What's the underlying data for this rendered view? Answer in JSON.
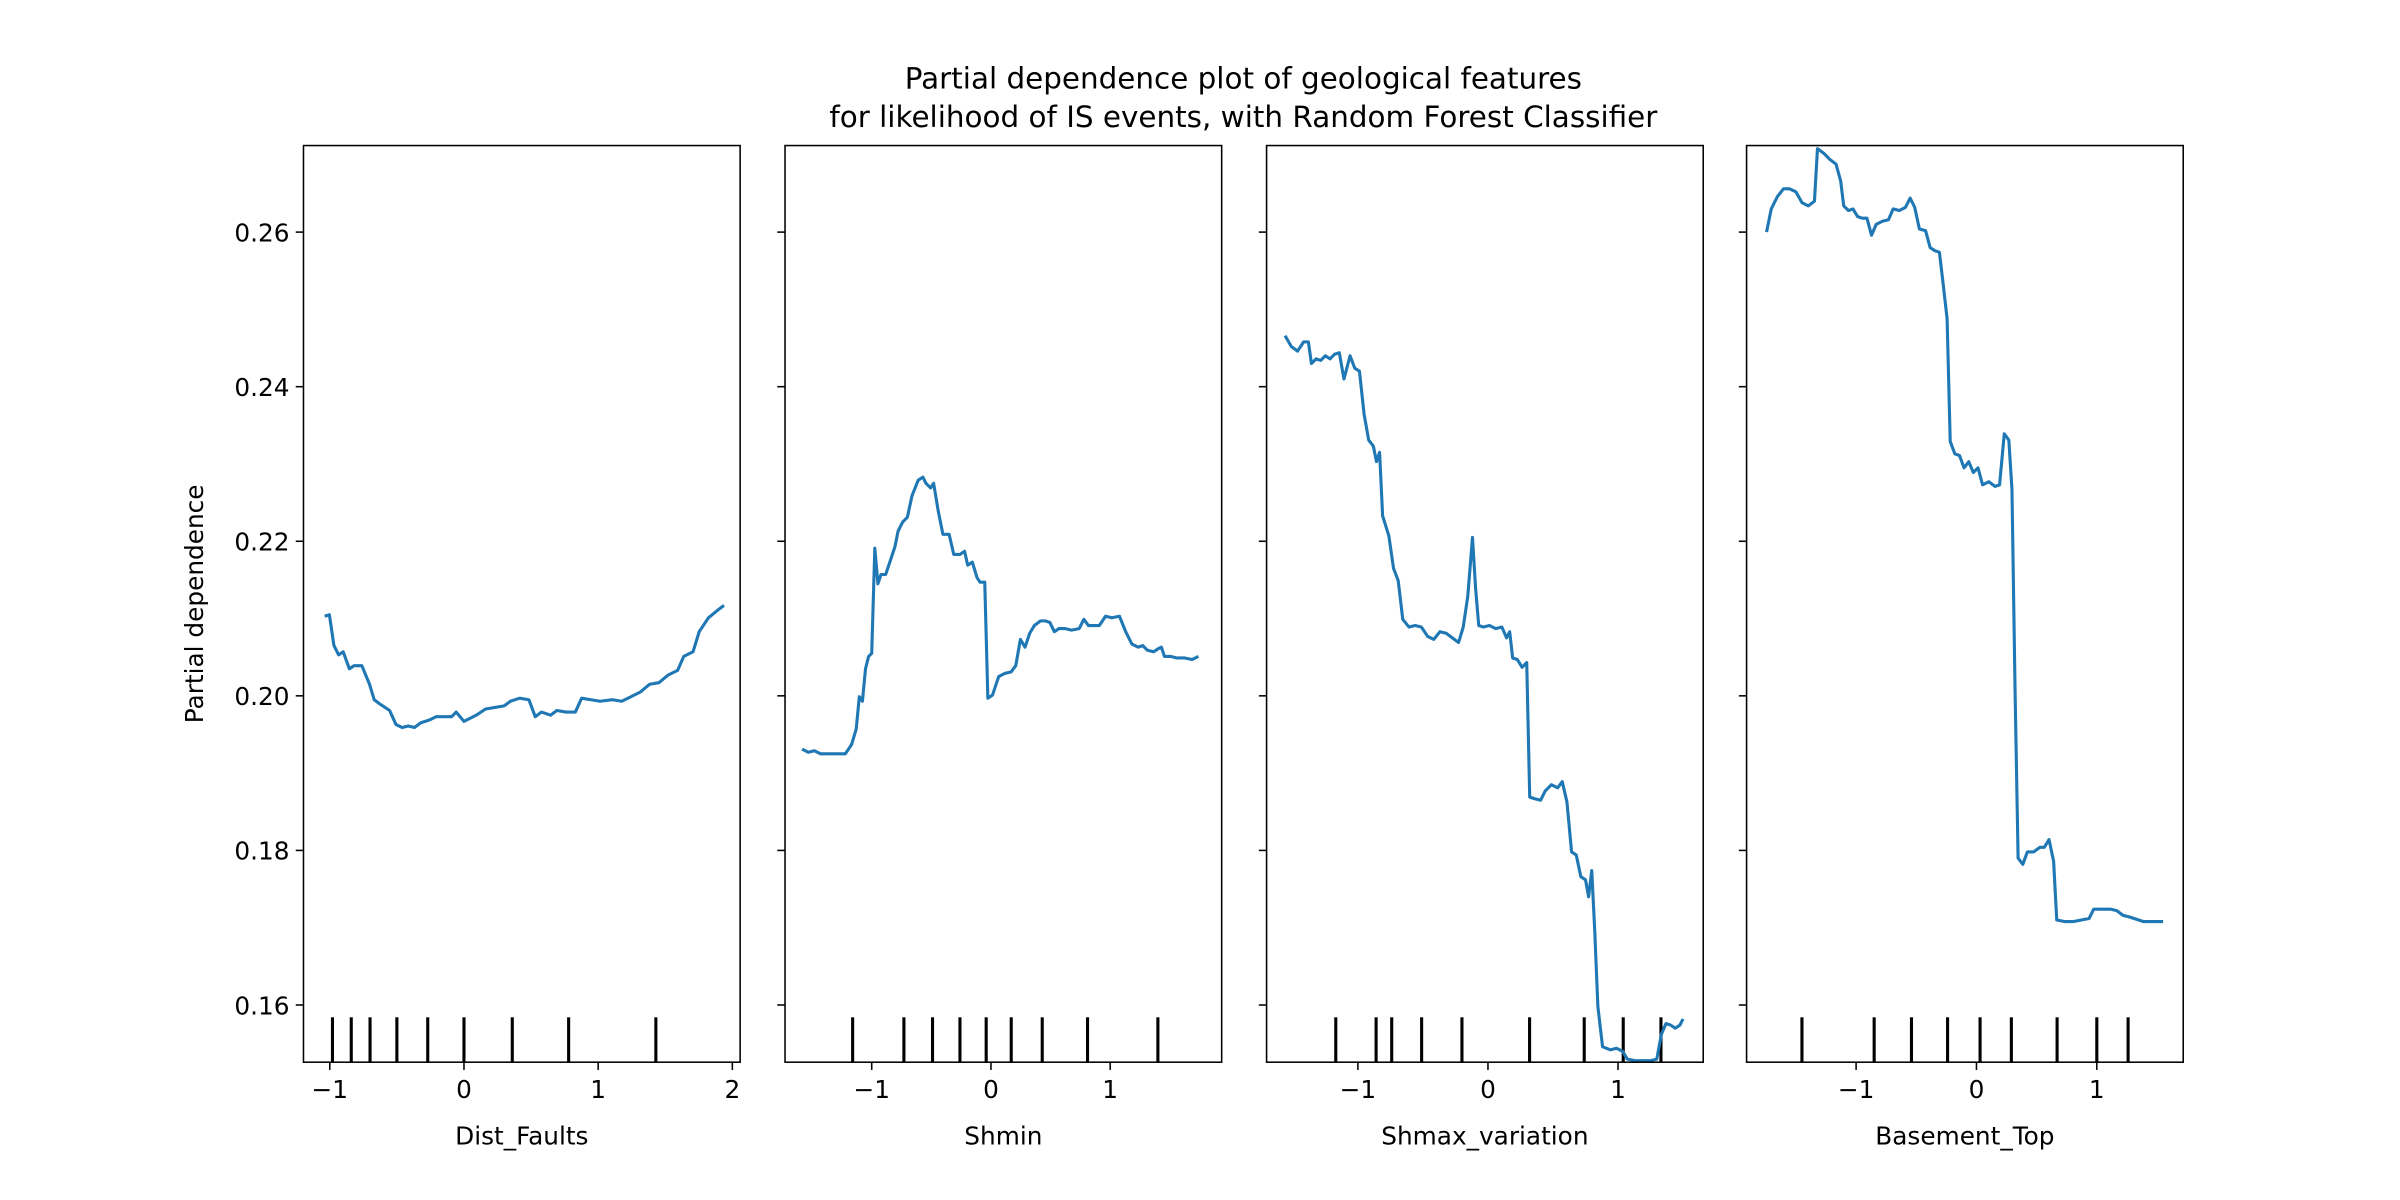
{
  "title": [
    "Partial dependence plot of geological features",
    "for likelihood of IS events, with Random Forest Classifier"
  ],
  "chart_data": [
    {
      "type": "line",
      "xlabel": "Dist_Faults",
      "ylabel": "Partial dependence",
      "color": "#1f77b4",
      "ylim": [
        0.1526,
        0.2712
      ],
      "yticks": [
        0.16,
        0.18,
        {
          "value": 0.2,
          "label": "0.20"
        },
        0.22,
        0.24,
        0.26
      ],
      "xlim": [
        -1.196,
        2.058
      ],
      "xticks": [
        {
          "value": -1,
          "label": "−1"
        },
        0,
        1,
        2
      ],
      "deciles": [
        -0.98,
        -0.84,
        -0.7,
        -0.5,
        -0.27,
        0,
        0.36,
        0.78,
        1.43
      ],
      "x": [
        -1.038,
        -1.003,
        -0.969,
        -0.934,
        -0.9,
        -0.854,
        -0.819,
        -0.761,
        -0.704,
        -0.669,
        -0.623,
        -0.554,
        -0.507,
        -0.461,
        -0.415,
        -0.369,
        -0.323,
        -0.254,
        -0.208,
        -0.15,
        -0.092,
        -0.058,
        0,
        0.046,
        0.092,
        0.161,
        0.231,
        0.3,
        0.346,
        0.415,
        0.484,
        0.531,
        0.577,
        0.646,
        0.692,
        0.761,
        0.83,
        0.877,
        0.946,
        1.015,
        1.107,
        1.176,
        1.246,
        1.315,
        1.384,
        1.453,
        1.522,
        1.592,
        1.638,
        1.707,
        1.753,
        1.822,
        1.892,
        1.938
      ],
      "values": [
        0.2103,
        0.2105,
        0.2065,
        0.2053,
        0.2057,
        0.2035,
        0.2039,
        0.2039,
        0.2015,
        0.1995,
        0.1989,
        0.1981,
        0.1963,
        0.1959,
        0.1961,
        0.1959,
        0.1965,
        0.1969,
        0.1973,
        0.1973,
        0.1973,
        0.1979,
        0.1967,
        0.1971,
        0.1975,
        0.1983,
        0.1985,
        0.1987,
        0.1993,
        0.1997,
        0.1995,
        0.1973,
        0.1979,
        0.1975,
        0.1981,
        0.1979,
        0.1979,
        0.1997,
        0.1995,
        0.1993,
        0.1995,
        0.1993,
        0.1999,
        0.2005,
        0.2015,
        0.2017,
        0.2027,
        0.2033,
        0.2051,
        0.2057,
        0.2083,
        0.2101,
        0.2111,
        0.2117
      ]
    },
    {
      "type": "line",
      "xlabel": "Shmin",
      "sharey": true,
      "color": "#1f77b4",
      "xlim": [
        -1.727,
        1.935
      ],
      "xticks": [
        {
          "value": -1,
          "label": "−1"
        },
        0,
        1
      ],
      "deciles": [
        -1.16,
        -0.73,
        -0.49,
        -0.26,
        -0.04,
        0.17,
        0.43,
        0.81,
        1.4
      ],
      "x": [
        -1.584,
        -1.532,
        -1.481,
        -1.429,
        -1.351,
        -1.273,
        -1.221,
        -1.169,
        -1.13,
        -1.104,
        -1.078,
        -1.052,
        -1.026,
        -1.0,
        -0.974,
        -0.948,
        -0.922,
        -0.883,
        -0.844,
        -0.805,
        -0.779,
        -0.74,
        -0.701,
        -0.662,
        -0.61,
        -0.571,
        -0.545,
        -0.506,
        -0.481,
        -0.442,
        -0.403,
        -0.351,
        -0.312,
        -0.26,
        -0.221,
        -0.195,
        -0.156,
        -0.117,
        -0.091,
        -0.052,
        -0.026,
        0.013,
        0.065,
        0.117,
        0.169,
        0.208,
        0.247,
        0.286,
        0.325,
        0.364,
        0.416,
        0.455,
        0.494,
        0.532,
        0.571,
        0.623,
        0.675,
        0.74,
        0.779,
        0.818,
        0.857,
        0.909,
        0.961,
        1.013,
        1.078,
        1.13,
        1.182,
        1.234,
        1.273,
        1.312,
        1.364,
        1.403,
        1.429,
        1.455,
        1.506,
        1.558,
        1.623,
        1.688,
        1.74
      ],
      "values": [
        0.1931,
        0.1927,
        0.1929,
        0.1925,
        0.1925,
        0.1925,
        0.1925,
        0.1937,
        0.1957,
        0.1999,
        0.1993,
        0.2035,
        0.2051,
        0.2055,
        0.2191,
        0.2145,
        0.2157,
        0.2157,
        0.2175,
        0.2193,
        0.2213,
        0.2225,
        0.2231,
        0.2259,
        0.2279,
        0.2283,
        0.2275,
        0.2269,
        0.2275,
        0.2239,
        0.2209,
        0.2209,
        0.2183,
        0.2183,
        0.2187,
        0.2169,
        0.2173,
        0.2153,
        0.2147,
        0.2147,
        0.1997,
        0.2001,
        0.2025,
        0.2029,
        0.2031,
        0.2039,
        0.2073,
        0.2063,
        0.2081,
        0.2091,
        0.2097,
        0.2097,
        0.2095,
        0.2083,
        0.2087,
        0.2087,
        0.2085,
        0.2087,
        0.2099,
        0.2091,
        0.2091,
        0.2091,
        0.2103,
        0.2101,
        0.2103,
        0.2083,
        0.2067,
        0.2063,
        0.2065,
        0.2059,
        0.2057,
        0.2061,
        0.2063,
        0.2051,
        0.2051,
        0.2049,
        0.2049,
        0.2047,
        0.2051
      ]
    },
    {
      "type": "line",
      "xlabel": "Shmax_variation",
      "sharey": true,
      "color": "#1f77b4",
      "xlim": [
        -1.702,
        1.655
      ],
      "xticks": [
        {
          "value": -1,
          "label": "−1"
        },
        0,
        1
      ],
      "deciles": [
        -1.17,
        -0.86,
        -0.74,
        -0.51,
        -0.2,
        0.32,
        0.74,
        1.04,
        1.33
      ],
      "x": [
        -1.56,
        -1.512,
        -1.464,
        -1.417,
        -1.381,
        -1.357,
        -1.321,
        -1.286,
        -1.25,
        -1.214,
        -1.179,
        -1.143,
        -1.107,
        -1.06,
        -1.024,
        -0.988,
        -0.952,
        -0.917,
        -0.881,
        -0.857,
        -0.833,
        -0.81,
        -0.762,
        -0.726,
        -0.69,
        -0.655,
        -0.607,
        -0.56,
        -0.512,
        -0.464,
        -0.417,
        -0.369,
        -0.321,
        -0.274,
        -0.226,
        -0.19,
        -0.155,
        -0.119,
        -0.095,
        -0.071,
        -0.036,
        0.012,
        0.06,
        0.107,
        0.143,
        0.167,
        0.19,
        0.226,
        0.262,
        0.298,
        0.321,
        0.357,
        0.405,
        0.44,
        0.488,
        0.536,
        0.571,
        0.607,
        0.643,
        0.679,
        0.714,
        0.75,
        0.774,
        0.798,
        0.821,
        0.845,
        0.881,
        0.94,
        0.988,
        1.036,
        1.071,
        1.131,
        1.179,
        1.25,
        1.298,
        1.333,
        1.369,
        1.405,
        1.44,
        1.476,
        1.5
      ],
      "values": [
        0.2466,
        0.2452,
        0.2446,
        0.2458,
        0.2458,
        0.243,
        0.2436,
        0.2434,
        0.244,
        0.2436,
        0.2442,
        0.2444,
        0.241,
        0.244,
        0.2424,
        0.242,
        0.2364,
        0.2331,
        0.2323,
        0.2303,
        0.2315,
        0.2233,
        0.2207,
        0.2165,
        0.2149,
        0.2099,
        0.2089,
        0.2091,
        0.2089,
        0.2077,
        0.2073,
        0.2083,
        0.2081,
        0.2075,
        0.2069,
        0.2089,
        0.2129,
        0.2205,
        0.2139,
        0.2091,
        0.2089,
        0.2091,
        0.2087,
        0.2089,
        0.2075,
        0.2083,
        0.2049,
        0.2047,
        0.2037,
        0.2043,
        0.1869,
        0.1867,
        0.1865,
        0.1877,
        0.1885,
        0.1881,
        0.1889,
        0.1863,
        0.1798,
        0.1794,
        0.1766,
        0.1762,
        0.174,
        0.1774,
        0.1696,
        0.1598,
        0.1546,
        0.1542,
        0.1544,
        0.154,
        0.153,
        0.1528,
        0.1528,
        0.1528,
        0.153,
        0.1562,
        0.1576,
        0.1574,
        0.157,
        0.1574,
        0.1582
      ]
    },
    {
      "type": "line",
      "xlabel": "Basement_Top",
      "sharey": true,
      "color": "#1f77b4",
      "xlim": [
        -1.91,
        1.718
      ],
      "xticks": [
        {
          "value": -1,
          "label": "−1"
        },
        0,
        1
      ],
      "deciles": [
        -1.45,
        -0.85,
        -0.54,
        -0.24,
        0.03,
        0.29,
        0.67,
        1.0,
        1.26
      ],
      "x": [
        -1.744,
        -1.705,
        -1.654,
        -1.603,
        -1.551,
        -1.5,
        -1.449,
        -1.397,
        -1.346,
        -1.321,
        -1.269,
        -1.218,
        -1.167,
        -1.128,
        -1.103,
        -1.064,
        -1.026,
        -0.987,
        -0.949,
        -0.91,
        -0.872,
        -0.833,
        -0.782,
        -0.731,
        -0.692,
        -0.641,
        -0.59,
        -0.551,
        -0.513,
        -0.474,
        -0.423,
        -0.385,
        -0.346,
        -0.308,
        -0.282,
        -0.244,
        -0.218,
        -0.179,
        -0.141,
        -0.103,
        -0.064,
        -0.026,
        0.013,
        0.051,
        0.103,
        0.154,
        0.192,
        0.231,
        0.269,
        0.295,
        0.321,
        0.346,
        0.385,
        0.423,
        0.474,
        0.526,
        0.564,
        0.603,
        0.641,
        0.667,
        0.731,
        0.808,
        0.872,
        0.936,
        0.974,
        1.038,
        1.115,
        1.167,
        1.218,
        1.269,
        1.385,
        1.551
      ],
      "values": [
        0.26,
        0.263,
        0.2646,
        0.2656,
        0.2656,
        0.2652,
        0.2638,
        0.2634,
        0.264,
        0.2708,
        0.2702,
        0.2694,
        0.2688,
        0.2666,
        0.2634,
        0.2628,
        0.263,
        0.262,
        0.2618,
        0.2618,
        0.2596,
        0.261,
        0.2614,
        0.2616,
        0.263,
        0.2628,
        0.2632,
        0.2644,
        0.2632,
        0.2604,
        0.2602,
        0.258,
        0.2576,
        0.2574,
        0.254,
        0.2488,
        0.2329,
        0.2313,
        0.2311,
        0.2295,
        0.2303,
        0.2289,
        0.2295,
        0.2273,
        0.2277,
        0.2271,
        0.2273,
        0.2339,
        0.2331,
        0.2267,
        0.2005,
        0.179,
        0.1782,
        0.1798,
        0.1798,
        0.1804,
        0.1804,
        0.1814,
        0.1786,
        0.171,
        0.1708,
        0.1708,
        0.171,
        0.1712,
        0.1724,
        0.1724,
        0.1724,
        0.1722,
        0.1716,
        0.1714,
        0.1708,
        0.1708
      ]
    }
  ]
}
